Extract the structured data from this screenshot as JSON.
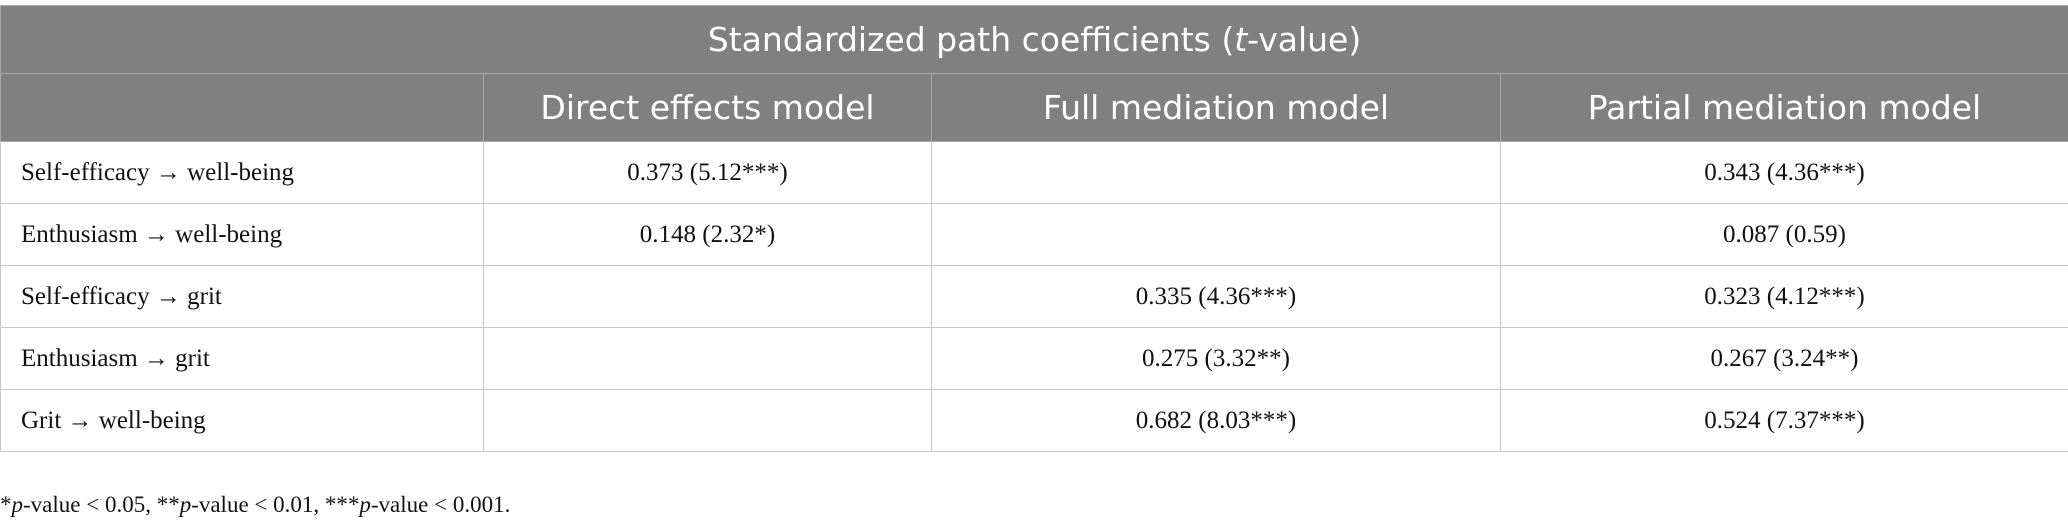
{
  "table": {
    "title": [
      "Standardized path coefficients (",
      "t",
      "-value)"
    ],
    "columns": [
      "Direct effects model",
      "Full mediation model",
      "Partial mediation model"
    ],
    "rows": [
      [
        "Self-efficacy → well-being",
        "0.373 (5.12***)",
        null,
        "0.343 (4.36***)"
      ],
      [
        "Enthusiasm → well-being",
        "0.148 (2.32*)",
        null,
        "0.087 (0.59)"
      ],
      [
        "Self-efficacy → grit",
        null,
        "0.335 (4.36***)",
        "0.323 (4.12***)"
      ],
      [
        "Enthusiasm → grit",
        null,
        "0.275 (3.32**)",
        "0.267 (3.24**)"
      ],
      [
        "Grit → well-being",
        null,
        "0.682 (8.03***)",
        "0.524 (7.37***)"
      ]
    ]
  },
  "footnote": [
    "*",
    "p",
    "-value < 0.05, **",
    "p",
    "-value < 0.01, ***",
    "p",
    "-value < 0.001."
  ]
}
